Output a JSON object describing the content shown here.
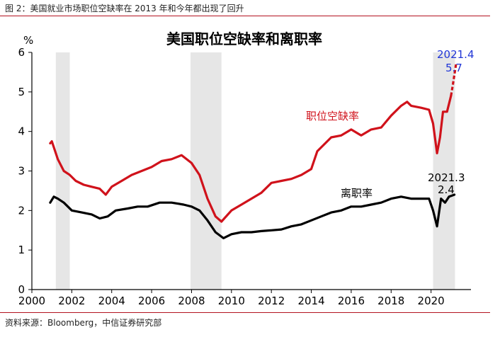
{
  "caption": "图 2：美国就业市场职位空缺率在 2013 年和今年都出现了回升",
  "source": "资料来源：Bloomberg，中信证券研究部",
  "chart_data": {
    "type": "line",
    "title": "美国职位空缺率和离职率",
    "y_unit": "%",
    "xlim": [
      2000,
      2022
    ],
    "ylim": [
      0,
      6
    ],
    "x_ticks": [
      "2000",
      "2002",
      "2004",
      "2006",
      "2008",
      "2010",
      "2012",
      "2014",
      "2016",
      "2018",
      "2020"
    ],
    "y_ticks": [
      "0",
      "1",
      "2",
      "3",
      "4",
      "5",
      "6"
    ],
    "recessions": [
      [
        2001.2,
        2001.9
      ],
      [
        2007.95,
        2009.5
      ],
      [
        2020.1,
        2021.2
      ]
    ],
    "colors": {
      "job_openings": "#d0121b",
      "quits": "#000000",
      "recession": "#e6e6e6",
      "annotation_blue": "#2136d6"
    },
    "series": [
      {
        "name": "职位空缺率",
        "key": "job_openings",
        "points": [
          [
            2000.92,
            3.7
          ],
          [
            2001.0,
            3.75
          ],
          [
            2001.1,
            3.6
          ],
          [
            2001.3,
            3.3
          ],
          [
            2001.6,
            3.0
          ],
          [
            2001.9,
            2.9
          ],
          [
            2002.2,
            2.75
          ],
          [
            2002.6,
            2.65
          ],
          [
            2003.0,
            2.6
          ],
          [
            2003.4,
            2.55
          ],
          [
            2003.7,
            2.4
          ],
          [
            2004.0,
            2.6
          ],
          [
            2004.5,
            2.75
          ],
          [
            2005.0,
            2.9
          ],
          [
            2005.5,
            3.0
          ],
          [
            2006.0,
            3.1
          ],
          [
            2006.5,
            3.25
          ],
          [
            2007.0,
            3.3
          ],
          [
            2007.5,
            3.4
          ],
          [
            2008.0,
            3.2
          ],
          [
            2008.4,
            2.9
          ],
          [
            2008.8,
            2.3
          ],
          [
            2009.2,
            1.85
          ],
          [
            2009.5,
            1.72
          ],
          [
            2010.0,
            2.0
          ],
          [
            2010.5,
            2.15
          ],
          [
            2011.0,
            2.3
          ],
          [
            2011.5,
            2.45
          ],
          [
            2012.0,
            2.7
          ],
          [
            2012.5,
            2.75
          ],
          [
            2013.0,
            2.8
          ],
          [
            2013.5,
            2.9
          ],
          [
            2014.0,
            3.05
          ],
          [
            2014.3,
            3.5
          ],
          [
            2014.7,
            3.7
          ],
          [
            2015.0,
            3.85
          ],
          [
            2015.5,
            3.9
          ],
          [
            2016.0,
            4.05
          ],
          [
            2016.5,
            3.9
          ],
          [
            2017.0,
            4.05
          ],
          [
            2017.5,
            4.1
          ],
          [
            2018.0,
            4.4
          ],
          [
            2018.5,
            4.65
          ],
          [
            2018.8,
            4.75
          ],
          [
            2019.0,
            4.65
          ],
          [
            2019.5,
            4.6
          ],
          [
            2019.9,
            4.55
          ],
          [
            2020.1,
            4.2
          ],
          [
            2020.3,
            3.45
          ],
          [
            2020.45,
            3.85
          ],
          [
            2020.6,
            4.5
          ],
          [
            2020.8,
            4.5
          ],
          [
            2021.0,
            4.9
          ],
          [
            2021.1,
            5.2
          ],
          [
            2021.25,
            5.7
          ]
        ]
      },
      {
        "name": "离职率",
        "key": "quits",
        "points": [
          [
            2000.92,
            2.2
          ],
          [
            2001.1,
            2.35
          ],
          [
            2001.3,
            2.3
          ],
          [
            2001.6,
            2.2
          ],
          [
            2002.0,
            2.0
          ],
          [
            2002.5,
            1.95
          ],
          [
            2003.0,
            1.9
          ],
          [
            2003.4,
            1.8
          ],
          [
            2003.8,
            1.85
          ],
          [
            2004.2,
            2.0
          ],
          [
            2004.8,
            2.05
          ],
          [
            2005.3,
            2.1
          ],
          [
            2005.8,
            2.1
          ],
          [
            2006.4,
            2.2
          ],
          [
            2007.0,
            2.2
          ],
          [
            2007.6,
            2.15
          ],
          [
            2008.0,
            2.1
          ],
          [
            2008.4,
            2.0
          ],
          [
            2008.8,
            1.75
          ],
          [
            2009.2,
            1.45
          ],
          [
            2009.6,
            1.3
          ],
          [
            2010.0,
            1.4
          ],
          [
            2010.5,
            1.45
          ],
          [
            2011.0,
            1.45
          ],
          [
            2011.5,
            1.48
          ],
          [
            2012.0,
            1.5
          ],
          [
            2012.5,
            1.52
          ],
          [
            2013.0,
            1.6
          ],
          [
            2013.5,
            1.65
          ],
          [
            2014.0,
            1.75
          ],
          [
            2014.5,
            1.85
          ],
          [
            2015.0,
            1.95
          ],
          [
            2015.5,
            2.0
          ],
          [
            2016.0,
            2.1
          ],
          [
            2016.5,
            2.1
          ],
          [
            2017.0,
            2.15
          ],
          [
            2017.5,
            2.2
          ],
          [
            2018.0,
            2.3
          ],
          [
            2018.5,
            2.35
          ],
          [
            2019.0,
            2.3
          ],
          [
            2019.5,
            2.3
          ],
          [
            2019.9,
            2.3
          ],
          [
            2020.1,
            2.0
          ],
          [
            2020.3,
            1.6
          ],
          [
            2020.5,
            2.3
          ],
          [
            2020.7,
            2.2
          ],
          [
            2020.9,
            2.35
          ],
          [
            2021.17,
            2.4
          ]
        ]
      }
    ],
    "labels": {
      "job_openings": "职位空缺率",
      "quits": "离职率",
      "last_job_date": "2021.4",
      "last_job_value": "5.7",
      "last_quits_date": "2021.3",
      "last_quits_value": "2.4"
    }
  }
}
